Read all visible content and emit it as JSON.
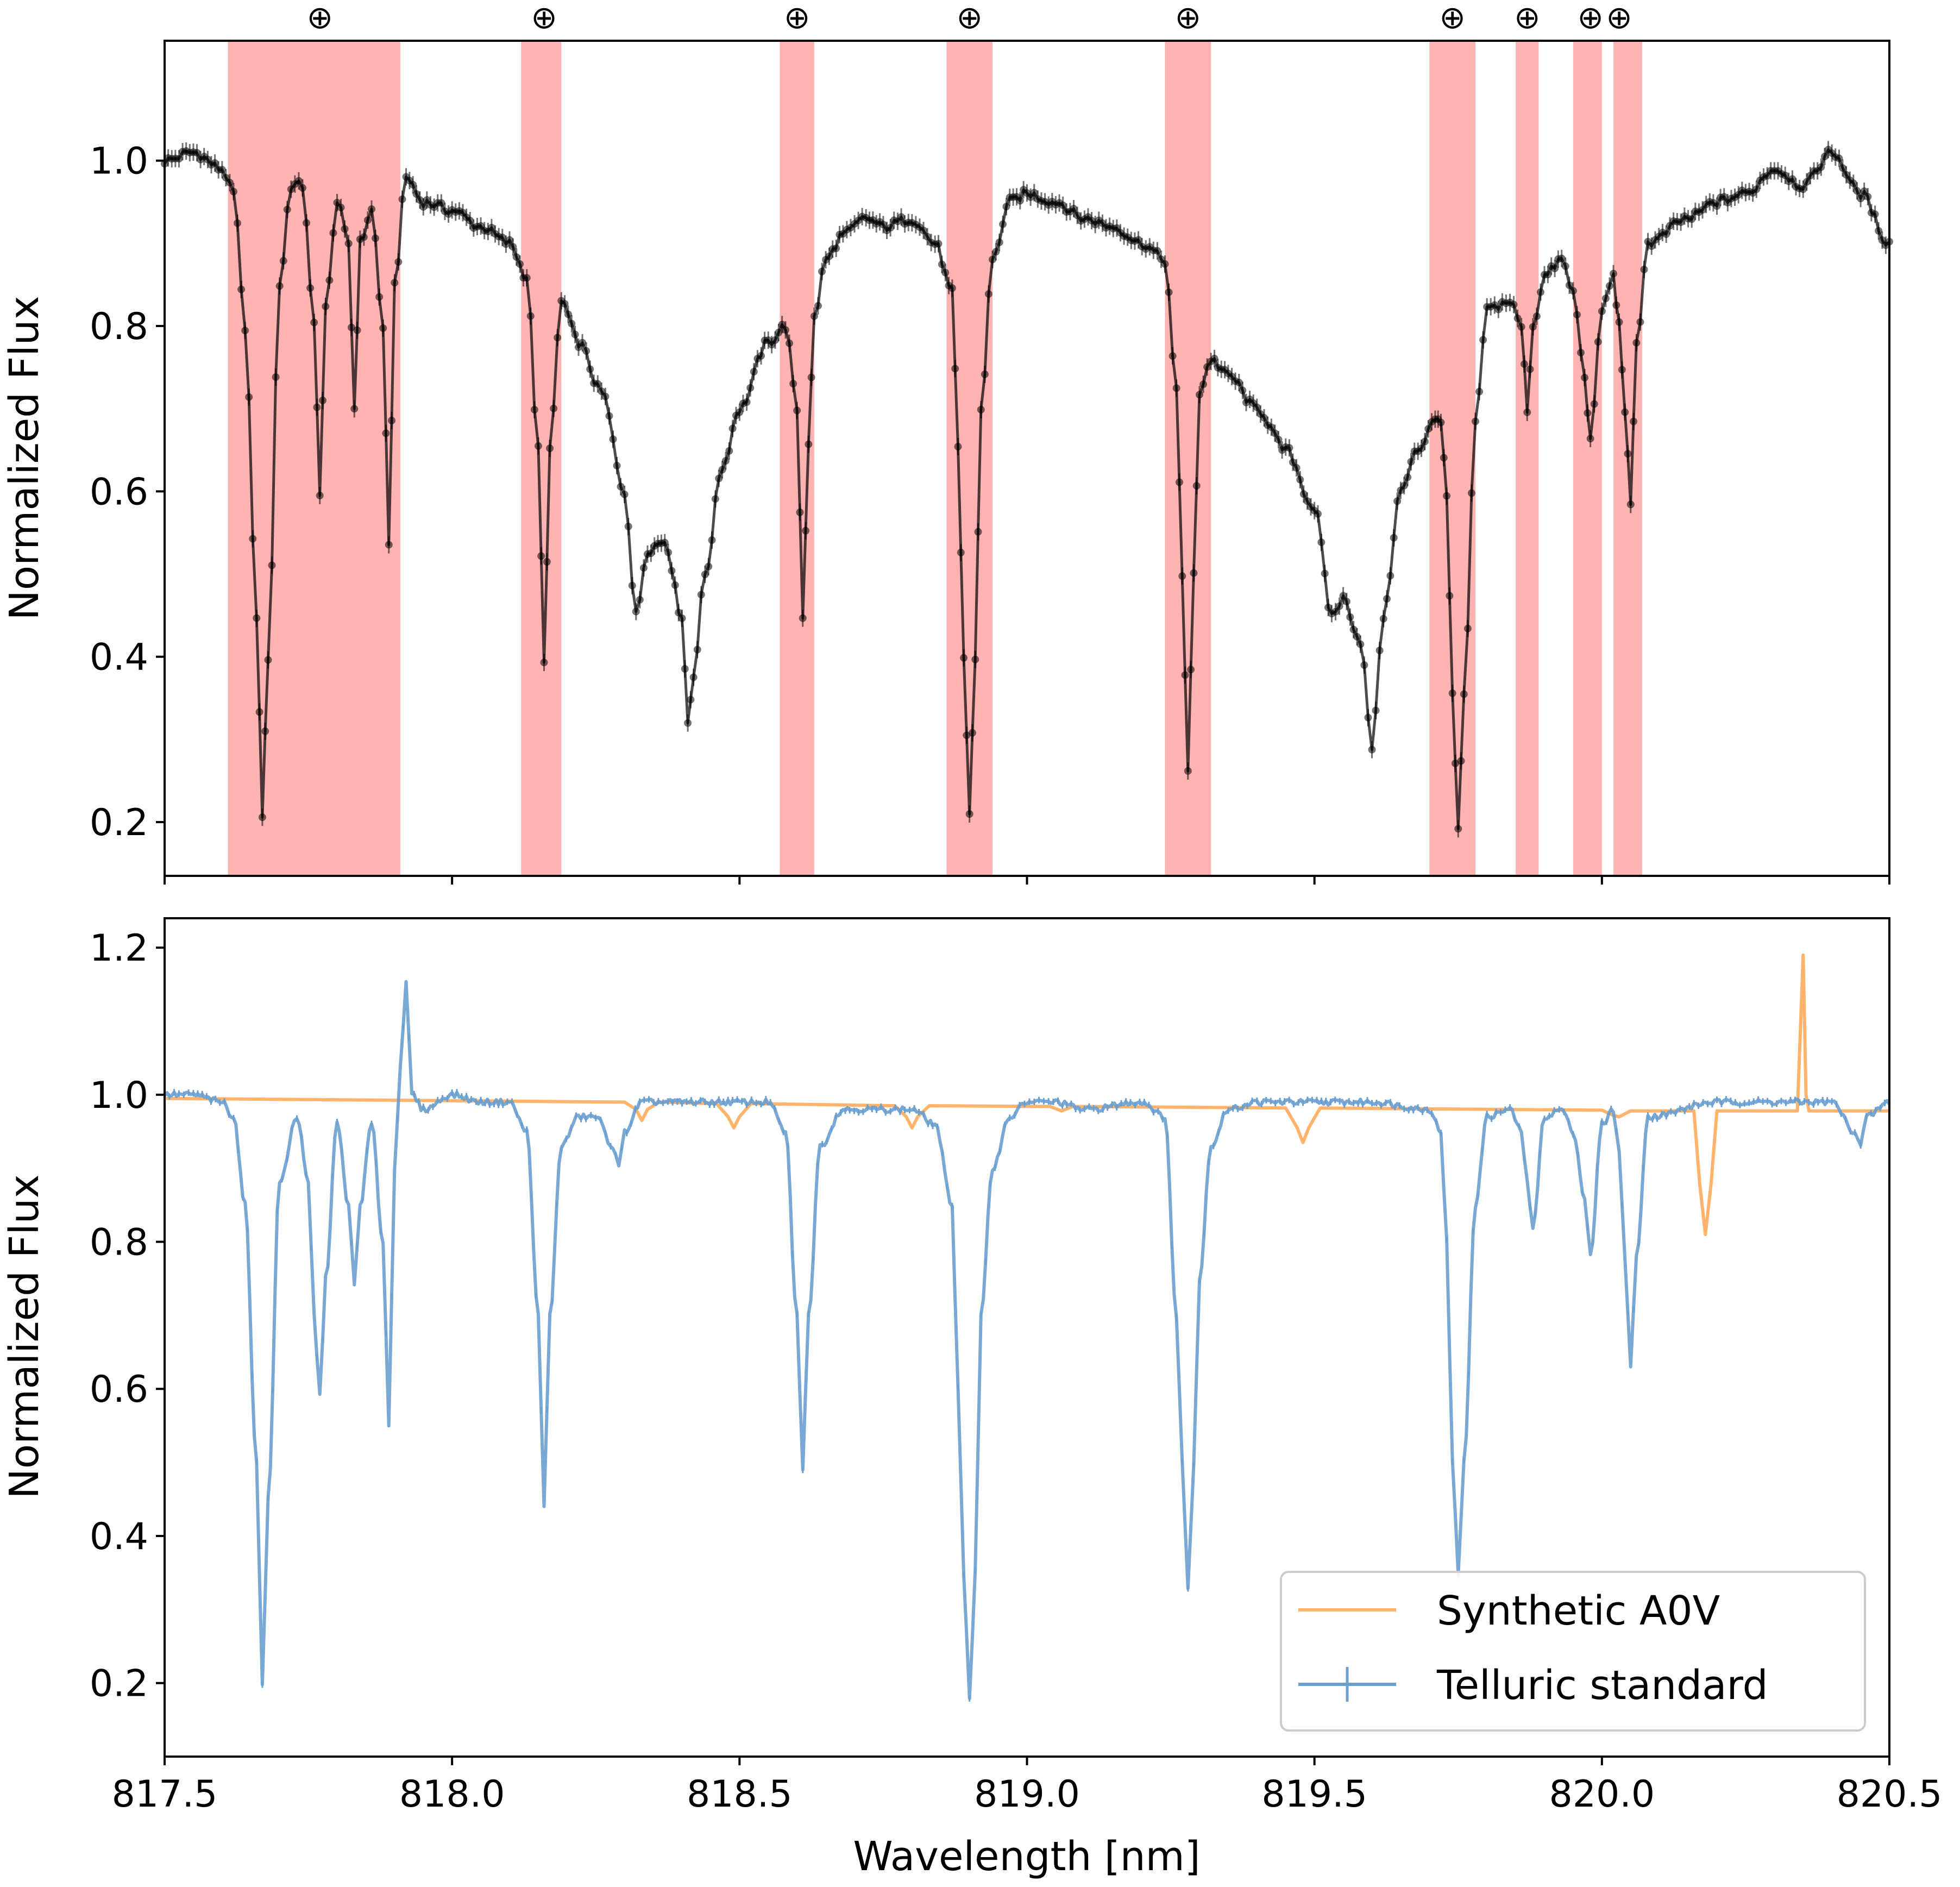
{
  "figure": {
    "xlabel": "Wavelength [nm]",
    "xticks": [
      "817.5",
      "818.0",
      "818.5",
      "819.0",
      "819.5",
      "820.0",
      "820.5"
    ],
    "telluric_marker": "⊕"
  },
  "colors": {
    "star": "#000000",
    "telluric_band": "#ff9999",
    "synthetic": "#ffb36b",
    "telluric_standard": "#6a9fcf"
  },
  "chart_data": [
    {
      "type": "line",
      "panel": "top",
      "title": "",
      "xlabel": "",
      "ylabel": "Normalized Flux",
      "xlim": [
        817.5,
        820.5
      ],
      "ylim": [
        0.135,
        1.145
      ],
      "yticks": [
        "0.2",
        "0.4",
        "0.6",
        "0.8",
        "1.0"
      ],
      "ytick_values": [
        0.2,
        0.4,
        0.6,
        0.8,
        1.0
      ],
      "grid": false,
      "markers": "filled circles with vertical error bars",
      "telluric_regions": [
        [
          817.61,
          817.91
        ],
        [
          818.12,
          818.19
        ],
        [
          818.57,
          818.63
        ],
        [
          818.86,
          818.94
        ],
        [
          819.24,
          819.32
        ],
        [
          819.7,
          819.78
        ],
        [
          819.85,
          819.89
        ],
        [
          819.95,
          820.0
        ],
        [
          820.02,
          820.07
        ]
      ],
      "telluric_marker_positions": [
        817.77,
        818.16,
        818.6,
        818.9,
        819.28,
        819.74,
        819.87,
        819.98,
        820.03
      ],
      "series": [
        {
          "x": [
            817.5,
            817.55,
            817.6,
            817.62,
            817.64,
            817.66,
            817.67,
            817.68,
            817.7,
            817.72,
            817.74,
            817.76,
            817.77,
            817.78,
            817.8,
            817.82,
            817.83,
            817.84,
            817.86,
            817.88,
            817.89,
            817.9,
            817.92,
            817.95,
            818.0,
            818.05,
            818.1,
            818.13,
            818.15,
            818.16,
            818.17,
            818.19,
            818.22,
            818.26,
            818.3,
            818.32,
            818.34,
            818.37,
            818.4,
            818.41,
            818.42,
            818.44,
            818.47,
            818.5,
            818.55,
            818.58,
            818.6,
            818.61,
            818.62,
            818.63,
            818.65,
            818.68,
            818.72,
            818.75,
            818.8,
            818.84,
            818.87,
            818.88,
            818.89,
            818.9,
            818.91,
            818.92,
            818.94,
            818.97,
            819.0,
            819.05,
            819.1,
            819.15,
            819.2,
            819.24,
            819.26,
            819.27,
            819.28,
            819.29,
            819.3,
            819.32,
            819.35,
            819.4,
            819.45,
            819.5,
            819.53,
            819.55,
            819.58,
            819.6,
            819.62,
            819.65,
            819.68,
            819.71,
            819.72,
            819.73,
            819.74,
            819.75,
            819.76,
            819.78,
            819.8,
            819.84,
            819.86,
            819.87,
            819.88,
            819.9,
            819.93,
            819.95,
            819.97,
            819.98,
            820.0,
            820.02,
            820.03,
            820.04,
            820.05,
            820.06,
            820.08,
            820.15,
            820.2,
            820.25,
            820.3,
            820.35,
            820.4,
            820.45,
            820.5
          ],
          "values": [
            1.0,
            1.01,
            0.99,
            0.96,
            0.8,
            0.45,
            0.21,
            0.4,
            0.85,
            0.97,
            0.97,
            0.8,
            0.6,
            0.82,
            0.95,
            0.9,
            0.7,
            0.9,
            0.94,
            0.8,
            0.53,
            0.85,
            0.98,
            0.95,
            0.94,
            0.92,
            0.9,
            0.86,
            0.65,
            0.39,
            0.65,
            0.83,
            0.78,
            0.72,
            0.6,
            0.45,
            0.53,
            0.54,
            0.45,
            0.32,
            0.38,
            0.5,
            0.63,
            0.7,
            0.78,
            0.8,
            0.7,
            0.45,
            0.66,
            0.81,
            0.88,
            0.91,
            0.93,
            0.92,
            0.93,
            0.9,
            0.84,
            0.65,
            0.4,
            0.21,
            0.4,
            0.7,
            0.88,
            0.95,
            0.96,
            0.95,
            0.93,
            0.92,
            0.9,
            0.88,
            0.72,
            0.5,
            0.26,
            0.5,
            0.72,
            0.76,
            0.74,
            0.7,
            0.65,
            0.58,
            0.45,
            0.47,
            0.42,
            0.29,
            0.45,
            0.6,
            0.65,
            0.69,
            0.68,
            0.6,
            0.35,
            0.19,
            0.35,
            0.68,
            0.82,
            0.83,
            0.8,
            0.7,
            0.8,
            0.86,
            0.88,
            0.84,
            0.74,
            0.66,
            0.82,
            0.86,
            0.8,
            0.7,
            0.58,
            0.78,
            0.9,
            0.93,
            0.95,
            0.96,
            0.99,
            0.97,
            1.01,
            0.96,
            0.9
          ]
        }
      ]
    },
    {
      "type": "line",
      "panel": "bottom",
      "title": "",
      "xlabel": "Wavelength [nm]",
      "ylabel": "Normalized Flux",
      "xlim": [
        817.5,
        820.5
      ],
      "ylim": [
        0.1,
        1.24
      ],
      "yticks": [
        "0.2",
        "0.4",
        "0.6",
        "0.8",
        "1.0",
        "1.2"
      ],
      "ytick_values": [
        0.2,
        0.4,
        0.6,
        0.8,
        1.0,
        1.2
      ],
      "grid": false,
      "legend_position": "lower right",
      "series": [
        {
          "name": "Synthetic A0V",
          "x": [
            817.5,
            818.3,
            818.32,
            818.33,
            818.34,
            818.36,
            818.46,
            818.48,
            818.49,
            818.5,
            818.52,
            818.77,
            818.79,
            818.8,
            818.81,
            818.83,
            819.04,
            819.06,
            819.08,
            819.45,
            819.47,
            819.48,
            819.49,
            819.51,
            820.0,
            820.02,
            820.03,
            820.05,
            820.16,
            820.17,
            820.18,
            820.19,
            820.2,
            820.34,
            820.35,
            820.355,
            820.36,
            820.5
          ],
          "values": [
            0.995,
            0.99,
            0.98,
            0.965,
            0.98,
            0.99,
            0.988,
            0.97,
            0.955,
            0.97,
            0.988,
            0.985,
            0.97,
            0.955,
            0.97,
            0.985,
            0.984,
            0.978,
            0.984,
            0.982,
            0.955,
            0.935,
            0.955,
            0.982,
            0.979,
            0.972,
            0.97,
            0.978,
            0.978,
            0.88,
            0.81,
            0.88,
            0.978,
            0.978,
            1.19,
            1.0,
            0.978,
            0.978
          ]
        },
        {
          "name": "Telluric standard",
          "x": [
            817.5,
            817.55,
            817.6,
            817.62,
            817.64,
            817.66,
            817.67,
            817.68,
            817.7,
            817.73,
            817.75,
            817.76,
            817.77,
            817.78,
            817.8,
            817.82,
            817.83,
            817.84,
            817.86,
            817.88,
            817.89,
            817.9,
            817.91,
            817.92,
            817.93,
            817.95,
            818.0,
            818.05,
            818.1,
            818.13,
            818.15,
            818.16,
            818.17,
            818.19,
            818.22,
            818.25,
            818.28,
            818.29,
            818.3,
            818.33,
            818.4,
            818.5,
            818.55,
            818.58,
            818.6,
            818.61,
            818.62,
            818.64,
            818.68,
            818.75,
            818.8,
            818.84,
            818.87,
            818.88,
            818.89,
            818.9,
            818.91,
            818.92,
            818.94,
            818.97,
            819.0,
            819.05,
            819.1,
            819.2,
            819.24,
            819.26,
            819.27,
            819.28,
            819.29,
            819.3,
            819.32,
            819.35,
            819.4,
            819.5,
            819.6,
            819.7,
            819.72,
            819.73,
            819.74,
            819.75,
            819.76,
            819.78,
            819.8,
            819.84,
            819.86,
            819.87,
            819.88,
            819.9,
            819.93,
            819.95,
            819.97,
            819.98,
            820.0,
            820.02,
            820.03,
            820.04,
            820.05,
            820.06,
            820.08,
            820.2,
            820.4,
            820.44,
            820.45,
            820.46,
            820.5
          ],
          "values": [
            1.0,
            1.0,
            0.99,
            0.97,
            0.85,
            0.5,
            0.2,
            0.45,
            0.88,
            0.97,
            0.88,
            0.7,
            0.59,
            0.75,
            0.96,
            0.85,
            0.74,
            0.85,
            0.96,
            0.8,
            0.55,
            0.9,
            1.04,
            1.15,
            1.0,
            0.98,
            1.0,
            0.99,
            0.99,
            0.95,
            0.7,
            0.44,
            0.7,
            0.93,
            0.97,
            0.97,
            0.93,
            0.9,
            0.95,
            0.99,
            0.99,
            0.99,
            0.99,
            0.95,
            0.7,
            0.49,
            0.7,
            0.93,
            0.98,
            0.98,
            0.98,
            0.96,
            0.85,
            0.6,
            0.35,
            0.18,
            0.35,
            0.7,
            0.9,
            0.97,
            0.99,
            0.99,
            0.98,
            0.99,
            0.97,
            0.7,
            0.5,
            0.33,
            0.5,
            0.75,
            0.93,
            0.98,
            0.99,
            0.99,
            0.99,
            0.98,
            0.95,
            0.8,
            0.5,
            0.35,
            0.5,
            0.85,
            0.97,
            0.98,
            0.95,
            0.88,
            0.82,
            0.97,
            0.98,
            0.95,
            0.86,
            0.78,
            0.96,
            0.98,
            0.92,
            0.78,
            0.63,
            0.78,
            0.97,
            0.99,
            0.99,
            0.95,
            0.93,
            0.97,
            0.99
          ]
        }
      ]
    }
  ]
}
